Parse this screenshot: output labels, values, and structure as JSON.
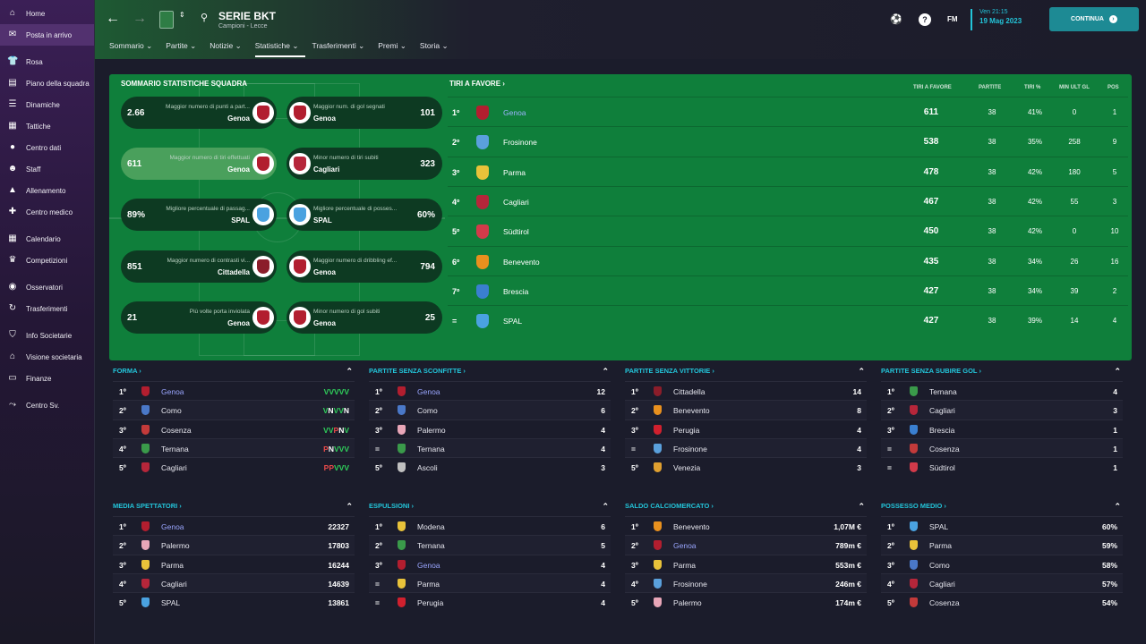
{
  "sidebar": {
    "items": [
      {
        "label": "Home",
        "icon": "home-icon"
      },
      {
        "label": "Posta in arrivo",
        "icon": "inbox-icon"
      },
      {
        "label": "Rosa",
        "icon": "shirt-icon"
      },
      {
        "label": "Piano della squadra",
        "icon": "plan-icon"
      },
      {
        "label": "Dinamiche",
        "icon": "dynamics-icon"
      },
      {
        "label": "Tattiche",
        "icon": "tactics-icon"
      },
      {
        "label": "Centro dati",
        "icon": "data-icon"
      },
      {
        "label": "Staff",
        "icon": "staff-icon"
      },
      {
        "label": "Allenamento",
        "icon": "training-icon"
      },
      {
        "label": "Centro medico",
        "icon": "medical-icon"
      },
      {
        "label": "Calendario",
        "icon": "calendar-icon"
      },
      {
        "label": "Competizioni",
        "icon": "trophy-icon"
      },
      {
        "label": "Osservatori",
        "icon": "scout-icon"
      },
      {
        "label": "Trasferimenti",
        "icon": "transfer-icon"
      },
      {
        "label": "Info Societarie",
        "icon": "club-icon"
      },
      {
        "label": "Visione societaria",
        "icon": "vision-icon"
      },
      {
        "label": "Finanze",
        "icon": "finance-icon"
      },
      {
        "label": "Centro Sv.",
        "icon": "dev-icon"
      }
    ]
  },
  "header": {
    "league": "SERIE BKT",
    "subtitle": "Campioni - Lecce",
    "date_line1": "Ven 21:15",
    "date_line2": "19 Mag 2023",
    "fm": "FM",
    "continue_label": "CONTINUA",
    "help": "?"
  },
  "tabs": [
    "Sommario",
    "Partite",
    "Notizie",
    "Statistiche",
    "Trasferimenti",
    "Premi",
    "Storia"
  ],
  "summary": {
    "title": "SOMMARIO STATISTICHE SQUADRA",
    "pills": [
      {
        "val": "2.66",
        "label": "Maggior numero di punti a part...",
        "team": "Genoa",
        "crest": "#b21e2f",
        "side": "left"
      },
      {
        "val": "101",
        "label": "Maggior num. di gol segnati",
        "team": "Genoa",
        "crest": "#b21e2f",
        "side": "right"
      },
      {
        "val": "611",
        "label": "Maggior numero di tiri effettuati",
        "team": "Genoa",
        "crest": "#b21e2f",
        "side": "left"
      },
      {
        "val": "323",
        "label": "Minor numero di tiri subiti",
        "team": "Cagliari",
        "crest": "#b6263a",
        "side": "right"
      },
      {
        "val": "89%",
        "label": "Migliore percentuale di passag...",
        "team": "SPAL",
        "crest": "#4aa2e0",
        "side": "left"
      },
      {
        "val": "60%",
        "label": "Migliore percentuale di posses...",
        "team": "SPAL",
        "crest": "#4aa2e0",
        "side": "right"
      },
      {
        "val": "851",
        "label": "Maggior numero di contrasti vi...",
        "team": "Cittadella",
        "crest": "#8b1d2a",
        "side": "left"
      },
      {
        "val": "794",
        "label": "Maggior numero di dribbling ef...",
        "team": "Genoa",
        "crest": "#b21e2f",
        "side": "right"
      },
      {
        "val": "21",
        "label": "Più volte porta inviolata",
        "team": "Genoa",
        "crest": "#b21e2f",
        "side": "left"
      },
      {
        "val": "25",
        "label": "Minor numero di gol subiti",
        "team": "Genoa",
        "crest": "#b21e2f",
        "side": "right"
      }
    ]
  },
  "tiri": {
    "title": "TIRI A FAVORE ›",
    "headers": [
      "TIRI A FAVORE",
      "PARTITE",
      "TIRI %",
      "MIN ULT GL",
      "POS"
    ],
    "rows": [
      {
        "pos": "1º",
        "team": "Genoa",
        "crest": "#b21e2f",
        "tiri": "611",
        "partite": "38",
        "pct": "41%",
        "min": "0",
        "p": "1"
      },
      {
        "pos": "2º",
        "team": "Frosinone",
        "crest": "#5aa0dc",
        "tiri": "538",
        "partite": "38",
        "pct": "35%",
        "min": "258",
        "p": "9"
      },
      {
        "pos": "3º",
        "team": "Parma",
        "crest": "#e8c23a",
        "tiri": "478",
        "partite": "38",
        "pct": "42%",
        "min": "180",
        "p": "5"
      },
      {
        "pos": "4º",
        "team": "Cagliari",
        "crest": "#b6263a",
        "tiri": "467",
        "partite": "38",
        "pct": "42%",
        "min": "55",
        "p": "3"
      },
      {
        "pos": "5º",
        "team": "Südtirol",
        "crest": "#d23a4a",
        "tiri": "450",
        "partite": "38",
        "pct": "42%",
        "min": "0",
        "p": "10"
      },
      {
        "pos": "6º",
        "team": "Benevento",
        "crest": "#e8901e",
        "tiri": "435",
        "partite": "38",
        "pct": "34%",
        "min": "26",
        "p": "16"
      },
      {
        "pos": "7º",
        "team": "Brescia",
        "crest": "#3a7fd0",
        "tiri": "427",
        "partite": "38",
        "pct": "34%",
        "min": "39",
        "p": "2"
      },
      {
        "pos": "=",
        "team": "SPAL",
        "crest": "#4aa2e0",
        "tiri": "427",
        "partite": "38",
        "pct": "39%",
        "min": "14",
        "p": "4"
      }
    ]
  },
  "panels": [
    {
      "title": "FORMA ›",
      "rows": [
        {
          "pos": "1º",
          "team": "Genoa",
          "link": true,
          "crest": "#b21e2f",
          "value": "VVVVV"
        },
        {
          "pos": "2º",
          "team": "Como",
          "crest": "#4a78c8",
          "value": "VNVVN"
        },
        {
          "pos": "3º",
          "team": "Cosenza",
          "crest": "#c33a3a",
          "value": "VVPNV"
        },
        {
          "pos": "4º",
          "team": "Ternana",
          "crest": "#3a9a4a",
          "value": "PNVVV"
        },
        {
          "pos": "5º",
          "team": "Cagliari",
          "crest": "#b6263a",
          "value": "PPVVV"
        }
      ]
    },
    {
      "title": "PARTITE SENZA SCONFITTE ›",
      "rows": [
        {
          "pos": "1º",
          "team": "Genoa",
          "link": true,
          "crest": "#b21e2f",
          "value": "12"
        },
        {
          "pos": "2º",
          "team": "Como",
          "crest": "#4a78c8",
          "value": "6"
        },
        {
          "pos": "3º",
          "team": "Palermo",
          "crest": "#e8a6b8",
          "value": "4"
        },
        {
          "pos": "=",
          "team": "Ternana",
          "crest": "#3a9a4a",
          "value": "4"
        },
        {
          "pos": "5º",
          "team": "Ascoli",
          "crest": "#c0c0c0",
          "value": "3"
        }
      ]
    },
    {
      "title": "PARTITE SENZA VITTORIE ›",
      "rows": [
        {
          "pos": "1º",
          "team": "Cittadella",
          "crest": "#8b1d2a",
          "value": "14"
        },
        {
          "pos": "2º",
          "team": "Benevento",
          "crest": "#e8901e",
          "value": "8"
        },
        {
          "pos": "3º",
          "team": "Perugia",
          "crest": "#d0202e",
          "value": "4"
        },
        {
          "pos": "=",
          "team": "Frosinone",
          "crest": "#5aa0dc",
          "value": "4"
        },
        {
          "pos": "5º",
          "team": "Venezia",
          "crest": "#e0a030",
          "value": "3"
        }
      ]
    },
    {
      "title": "PARTITE SENZA SUBIRE GOL ›",
      "rows": [
        {
          "pos": "1º",
          "team": "Ternana",
          "crest": "#3a9a4a",
          "value": "4"
        },
        {
          "pos": "2º",
          "team": "Cagliari",
          "crest": "#b6263a",
          "value": "3"
        },
        {
          "pos": "3º",
          "team": "Brescia",
          "crest": "#3a7fd0",
          "value": "1"
        },
        {
          "pos": "=",
          "team": "Cosenza",
          "crest": "#c33a3a",
          "value": "1"
        },
        {
          "pos": "=",
          "team": "Südtirol",
          "crest": "#d23a4a",
          "value": "1"
        }
      ]
    },
    {
      "title": "MEDIA SPETTATORI ›",
      "rows": [
        {
          "pos": "1º",
          "team": "Genoa",
          "link": true,
          "crest": "#b21e2f",
          "value": "22327"
        },
        {
          "pos": "2º",
          "team": "Palermo",
          "crest": "#e8a6b8",
          "value": "17803"
        },
        {
          "pos": "3º",
          "team": "Parma",
          "crest": "#e8c23a",
          "value": "16244"
        },
        {
          "pos": "4º",
          "team": "Cagliari",
          "crest": "#b6263a",
          "value": "14639"
        },
        {
          "pos": "5º",
          "team": "SPAL",
          "crest": "#4aa2e0",
          "value": "13861"
        }
      ]
    },
    {
      "title": "ESPULSIONI ›",
      "rows": [
        {
          "pos": "1º",
          "team": "Modena",
          "crest": "#e8c23a",
          "value": "6"
        },
        {
          "pos": "2º",
          "team": "Ternana",
          "crest": "#3a9a4a",
          "value": "5"
        },
        {
          "pos": "3º",
          "team": "Genoa",
          "link": true,
          "crest": "#b21e2f",
          "value": "4"
        },
        {
          "pos": "=",
          "team": "Parma",
          "crest": "#e8c23a",
          "value": "4"
        },
        {
          "pos": "=",
          "team": "Perugia",
          "crest": "#d0202e",
          "value": "4"
        }
      ]
    },
    {
      "title": "SALDO CALCIOMERCATO ›",
      "rows": [
        {
          "pos": "1º",
          "team": "Benevento",
          "crest": "#e8901e",
          "value": "1,07M €"
        },
        {
          "pos": "2º",
          "team": "Genoa",
          "link": true,
          "crest": "#b21e2f",
          "value": "789m €"
        },
        {
          "pos": "3º",
          "team": "Parma",
          "crest": "#e8c23a",
          "value": "553m €"
        },
        {
          "pos": "4º",
          "team": "Frosinone",
          "crest": "#5aa0dc",
          "value": "246m €"
        },
        {
          "pos": "5º",
          "team": "Palermo",
          "crest": "#e8a6b8",
          "value": "174m €"
        }
      ]
    },
    {
      "title": "POSSESSO MEDIO ›",
      "rows": [
        {
          "pos": "1º",
          "team": "SPAL",
          "crest": "#4aa2e0",
          "value": "60%"
        },
        {
          "pos": "2º",
          "team": "Parma",
          "crest": "#e8c23a",
          "value": "59%"
        },
        {
          "pos": "3º",
          "team": "Como",
          "crest": "#4a78c8",
          "value": "58%"
        },
        {
          "pos": "4º",
          "team": "Cagliari",
          "crest": "#b6263a",
          "value": "57%"
        },
        {
          "pos": "5º",
          "team": "Cosenza",
          "crest": "#c33a3a",
          "value": "54%"
        }
      ]
    }
  ]
}
